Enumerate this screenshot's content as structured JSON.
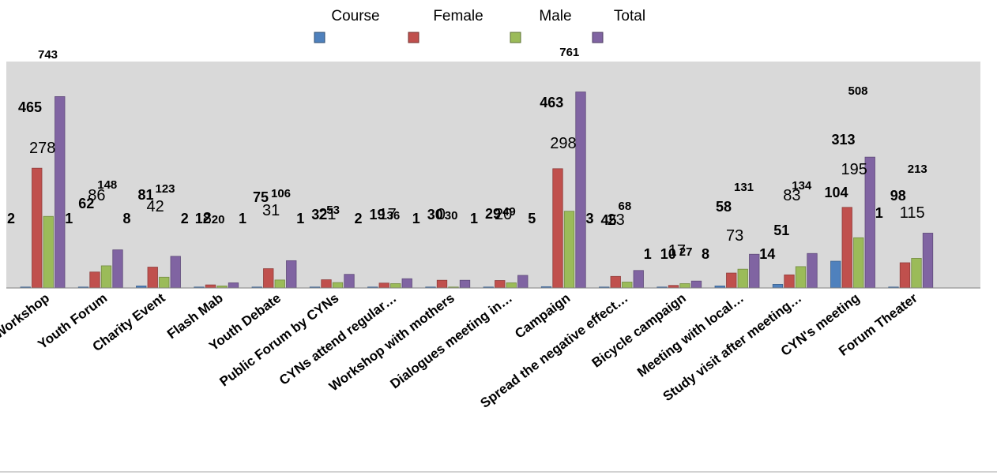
{
  "chart_data": {
    "type": "bar",
    "title": "",
    "xlabel": "",
    "ylabel": "",
    "ylim": [
      0,
      800
    ],
    "grid": false,
    "legend_position": "top",
    "categories": [
      "Workshop",
      "Youth Forum",
      "Charity Event",
      "Flash Mab",
      "Youth Debate",
      "Public Forum by CYNs",
      "CYNs attend regular…",
      "Workshop with mothers",
      "Dialogues meeting in…",
      "Campaign",
      "Spread the negative effect…",
      "Bicycle campaign",
      "Meeting with local…",
      "Study visit after meeting…",
      "CYN's meeting",
      "Forum Theater"
    ],
    "series": [
      {
        "name": "Course",
        "color": "#4F81BD",
        "values": [
          2,
          1,
          8,
          2,
          1,
          1,
          2,
          1,
          1,
          5,
          3,
          1,
          8,
          14,
          104,
          1
        ]
      },
      {
        "name": "Female",
        "color": "#C0504D",
        "values": [
          465,
          62,
          81,
          12,
          75,
          32,
          19,
          30,
          29,
          463,
          45,
          10,
          58,
          51,
          313,
          98
        ]
      },
      {
        "name": "Male",
        "color": "#9BBB59",
        "values": [
          278,
          86,
          42,
          8,
          31,
          21,
          17,
          0,
          20,
          298,
          23,
          17,
          73,
          83,
          195,
          115
        ]
      },
      {
        "name": "Total",
        "color": "#8064A2",
        "values": [
          743,
          148,
          123,
          20,
          106,
          53,
          36,
          30,
          49,
          761,
          68,
          27,
          131,
          134,
          508,
          213
        ]
      }
    ]
  }
}
